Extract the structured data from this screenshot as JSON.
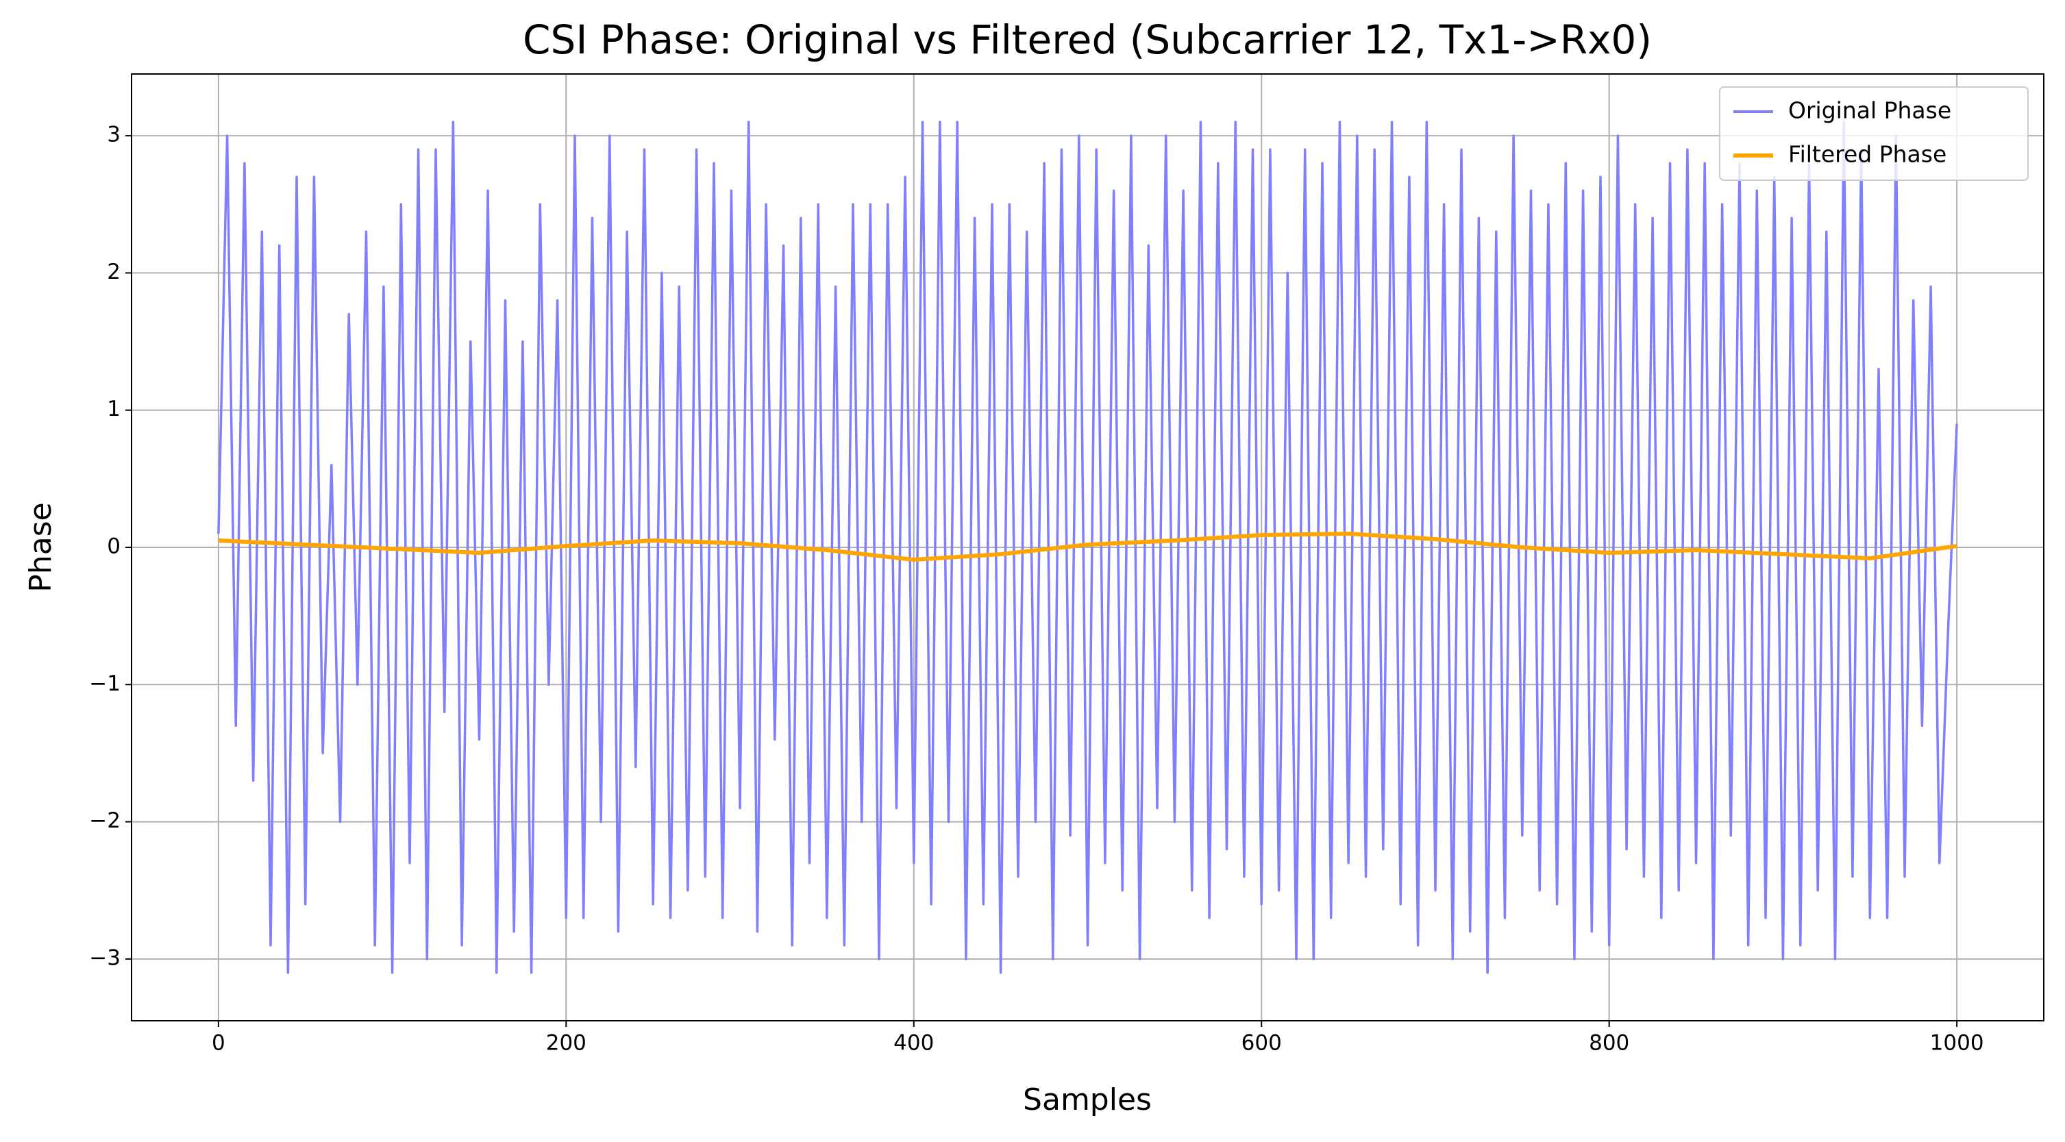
{
  "chart_data": {
    "type": "line",
    "title": "CSI Phase: Original vs Filtered (Subcarrier 12, Tx1->Rx0)",
    "x_label": "Samples",
    "y_label": "Phase",
    "xlim": [
      -50,
      1050
    ],
    "ylim": [
      -3.45,
      3.45
    ],
    "xticks": [
      0,
      200,
      400,
      600,
      800,
      1000
    ],
    "yticks": [
      {
        "value": -3,
        "label": "−3"
      },
      {
        "value": -2,
        "label": "−2"
      },
      {
        "value": -1,
        "label": "−1"
      },
      0,
      1,
      2,
      3
    ],
    "grid": true,
    "legend_position": "upper right",
    "series": [
      {
        "name": "Original Phase",
        "color": "#8080ff",
        "x": [
          0,
          5,
          10,
          15,
          20,
          25,
          30,
          35,
          40,
          45,
          50,
          55,
          60,
          65,
          70,
          75,
          80,
          85,
          90,
          95,
          100,
          105,
          110,
          115,
          120,
          125,
          130,
          135,
          140,
          145,
          150,
          155,
          160,
          165,
          170,
          175,
          180,
          185,
          190,
          195,
          200,
          205,
          210,
          215,
          220,
          225,
          230,
          235,
          240,
          245,
          250,
          255,
          260,
          265,
          270,
          275,
          280,
          285,
          290,
          295,
          300,
          305,
          310,
          315,
          320,
          325,
          330,
          335,
          340,
          345,
          350,
          355,
          360,
          365,
          370,
          375,
          380,
          385,
          390,
          395,
          400,
          405,
          410,
          415,
          420,
          425,
          430,
          435,
          440,
          445,
          450,
          455,
          460,
          465,
          470,
          475,
          480,
          485,
          490,
          495,
          500,
          505,
          510,
          515,
          520,
          525,
          530,
          535,
          540,
          545,
          550,
          555,
          560,
          565,
          570,
          575,
          580,
          585,
          590,
          595,
          600,
          605,
          610,
          615,
          620,
          625,
          630,
          635,
          640,
          645,
          650,
          655,
          660,
          665,
          670,
          675,
          680,
          685,
          690,
          695,
          700,
          705,
          710,
          715,
          720,
          725,
          730,
          735,
          740,
          745,
          750,
          755,
          760,
          765,
          770,
          775,
          780,
          785,
          790,
          795,
          800,
          805,
          810,
          815,
          820,
          825,
          830,
          835,
          840,
          845,
          850,
          855,
          860,
          865,
          870,
          875,
          880,
          885,
          890,
          895,
          900,
          905,
          910,
          915,
          920,
          925,
          930,
          935,
          940,
          945,
          950,
          955,
          960,
          965,
          970,
          975,
          980,
          985,
          990,
          995,
          1000
        ],
        "values": [
          0.1,
          3.0,
          -1.3,
          2.8,
          -1.7,
          2.3,
          -2.9,
          2.2,
          -3.1,
          2.7,
          -2.6,
          2.7,
          -1.5,
          0.6,
          -2.0,
          1.7,
          -1.0,
          2.3,
          -2.9,
          1.9,
          -3.1,
          2.5,
          -2.3,
          2.9,
          -3.0,
          2.9,
          -1.2,
          3.1,
          -2.9,
          1.5,
          -1.4,
          2.6,
          -3.1,
          1.8,
          -2.8,
          1.5,
          -3.1,
          2.5,
          -1.0,
          1.8,
          -2.7,
          3.0,
          -2.7,
          2.4,
          -2.0,
          3.0,
          -2.8,
          2.3,
          -1.6,
          2.9,
          -2.6,
          2.0,
          -2.7,
          1.9,
          -2.5,
          2.9,
          -2.4,
          2.8,
          -2.7,
          2.6,
          -1.9,
          3.1,
          -2.8,
          2.5,
          -1.4,
          2.2,
          -2.9,
          2.4,
          -2.3,
          2.5,
          -2.7,
          1.9,
          -2.9,
          2.5,
          -2.0,
          2.5,
          -3.0,
          2.5,
          -1.9,
          2.7,
          -2.3,
          3.1,
          -2.6,
          3.1,
          -2.0,
          3.1,
          -3.0,
          2.4,
          -2.6,
          2.5,
          -3.1,
          2.5,
          -2.4,
          2.3,
          -2.0,
          2.8,
          -3.0,
          2.9,
          -2.1,
          3.0,
          -2.9,
          2.9,
          -2.3,
          2.6,
          -2.5,
          3.0,
          -3.0,
          2.2,
          -1.9,
          3.0,
          -2.0,
          2.6,
          -2.5,
          3.1,
          -2.7,
          2.8,
          -2.2,
          3.1,
          -2.4,
          2.9,
          -2.6,
          2.9,
          -2.5,
          2.0,
          -3.0,
          2.9,
          -3.0,
          2.8,
          -2.7,
          3.1,
          -2.3,
          3.0,
          -2.4,
          2.9,
          -2.2,
          3.1,
          -2.6,
          2.7,
          -2.9,
          3.1,
          -2.5,
          2.5,
          -3.0,
          2.9,
          -2.8,
          2.4,
          -3.1,
          2.3,
          -2.7,
          3.0,
          -2.1,
          2.6,
          -2.5,
          2.5,
          -2.6,
          2.8,
          -3.0,
          2.6,
          -2.8,
          2.7,
          -2.9,
          3.0,
          -2.2,
          2.5,
          -2.4,
          2.4,
          -2.7,
          2.8,
          -2.5,
          2.9,
          -2.3,
          2.8,
          -3.0,
          2.5,
          -2.1,
          2.8,
          -2.9,
          2.6,
          -2.7,
          2.7,
          -3.0,
          2.4,
          -2.9,
          2.8,
          -2.5,
          2.3,
          -3.0,
          3.1,
          -2.4,
          2.9,
          -2.7,
          1.3,
          -2.7,
          3.0,
          -2.4,
          1.8,
          -1.3,
          1.9,
          -2.3,
          -0.6,
          0.9
        ]
      },
      {
        "name": "Filtered Phase",
        "color": "#ffa500",
        "x": [
          0,
          50,
          100,
          150,
          200,
          250,
          300,
          350,
          400,
          450,
          500,
          550,
          600,
          650,
          700,
          750,
          800,
          850,
          900,
          950,
          1000
        ],
        "values": [
          0.05,
          0.02,
          -0.01,
          -0.04,
          0.01,
          0.05,
          0.03,
          -0.02,
          -0.09,
          -0.05,
          0.02,
          0.05,
          0.09,
          0.1,
          0.06,
          0.0,
          -0.04,
          -0.02,
          -0.05,
          -0.08,
          0.01
        ]
      }
    ]
  }
}
